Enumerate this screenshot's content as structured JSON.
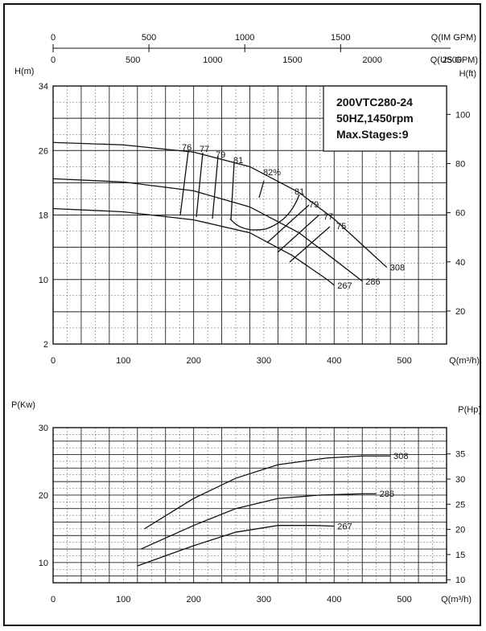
{
  "chart_data": [
    {
      "type": "line",
      "model": "200VTC280-24",
      "spec": "50HZ,1450rpm",
      "stages": "Max.Stages:9",
      "xlabel": "Q(m³/h)",
      "ylabel_left": "H(m)",
      "ylabel_right": "H(ft)",
      "top_axis_im_label": "Q(IM GPM)",
      "top_axis_us_label": "Q(US GPM)",
      "xlim": [
        0,
        560
      ],
      "ylim": [
        2,
        34
      ],
      "x_ticks": [
        "0",
        "100",
        "200",
        "300",
        "400",
        "500"
      ],
      "y_ticks_left": [
        "2",
        "10",
        "18",
        "26",
        "34"
      ],
      "y_ticks_right": [
        "20",
        "40",
        "60",
        "80",
        "100"
      ],
      "im_gpm_ticks": [
        "0",
        "500",
        "1000",
        "1500"
      ],
      "us_gpm_ticks": [
        "0",
        "500",
        "1000",
        "1500",
        "2000",
        "2500"
      ],
      "series": [
        {
          "name": "308",
          "x": [
            0,
            100,
            200,
            280,
            350,
            400,
            450,
            475
          ],
          "y": [
            27.0,
            26.7,
            25.8,
            24.0,
            20.8,
            17.5,
            13.5,
            11.5
          ]
        },
        {
          "name": "286",
          "x": [
            0,
            100,
            200,
            280,
            350,
            400,
            440
          ],
          "y": [
            22.5,
            22.1,
            21.0,
            19.0,
            15.8,
            12.5,
            9.8
          ]
        },
        {
          "name": "267",
          "x": [
            0,
            100,
            200,
            280,
            340,
            390,
            400
          ],
          "y": [
            18.8,
            18.4,
            17.4,
            15.8,
            13.0,
            10.0,
            9.3
          ]
        }
      ],
      "efficiency_labels": [
        "76",
        "77",
        "79",
        "81",
        "82%",
        "81",
        "79",
        "77",
        "75"
      ]
    },
    {
      "type": "line",
      "xlabel": "Q(m³/h)",
      "ylabel_left": "P(Kw)",
      "ylabel_right": "P(Hp)",
      "xlim": [
        0,
        560
      ],
      "ylim": [
        7,
        30
      ],
      "x_ticks": [
        "0",
        "100",
        "200",
        "300",
        "400",
        "500"
      ],
      "y_ticks_left": [
        "10",
        "20",
        "30"
      ],
      "y_ticks_right": [
        "10",
        "15",
        "20",
        "25",
        "30",
        "35"
      ],
      "series": [
        {
          "name": "308",
          "x": [
            130,
            200,
            260,
            320,
            390,
            440,
            480
          ],
          "y": [
            15.0,
            19.5,
            22.5,
            24.5,
            25.5,
            25.8,
            25.8
          ]
        },
        {
          "name": "286",
          "x": [
            125,
            200,
            260,
            320,
            380,
            440,
            460
          ],
          "y": [
            12.0,
            15.5,
            18.0,
            19.5,
            20.0,
            20.2,
            20.2
          ]
        },
        {
          "name": "267",
          "x": [
            120,
            200,
            260,
            320,
            370,
            400
          ],
          "y": [
            9.5,
            12.5,
            14.5,
            15.5,
            15.5,
            15.4
          ]
        }
      ]
    }
  ]
}
